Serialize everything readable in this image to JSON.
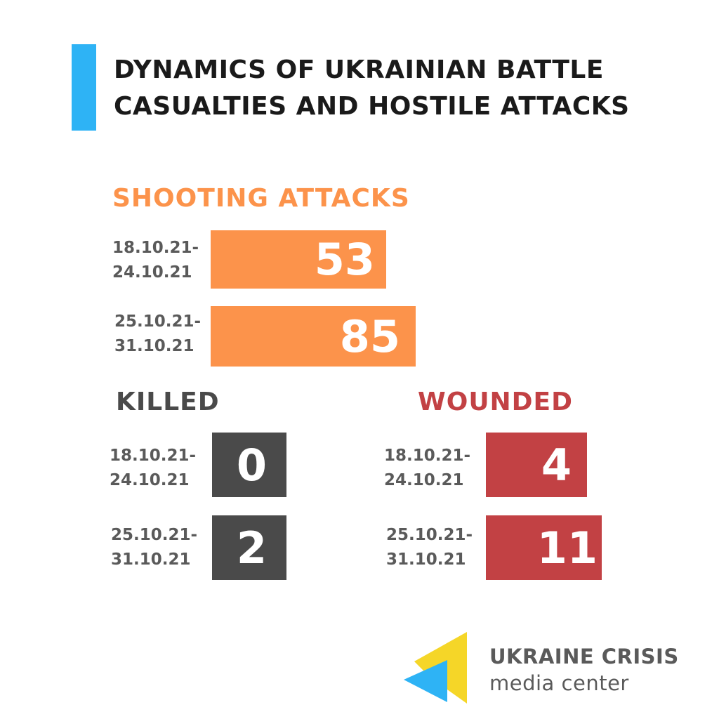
{
  "title_lines": [
    "DYNAMICS OF UKRAINIAN BATTLE",
    "CASUALTIES AND HOSTILE ATTACKS"
  ],
  "colors": {
    "accent": "#2eb3f5",
    "shooting": "#fc934b",
    "killed": "#4a4a4a",
    "wounded": "#c24144",
    "period_text": "#5a5a5a",
    "logo_yellow": "#f5d628",
    "logo_blue": "#2eb3f5"
  },
  "chart_data": [
    {
      "type": "bar",
      "title": "SHOOTING  ATTACKS",
      "categories": [
        "18.10.21-\n24.10.21",
        "25.10.21-\n31.10.21"
      ],
      "values": [
        53,
        85
      ]
    },
    {
      "type": "bar",
      "title": "KILLED",
      "categories": [
        "18.10.21-\n24.10.21",
        "25.10.21-\n31.10.21"
      ],
      "values": [
        0,
        2
      ]
    },
    {
      "type": "bar",
      "title": "WOUNDED",
      "categories": [
        "18.10.21-\n24.10.21",
        "25.10.21-\n31.10.21"
      ],
      "values": [
        4,
        11
      ]
    }
  ],
  "periods": {
    "p1_line1": "18.10.21-",
    "p1_line2": "24.10.21",
    "p2_line1": "25.10.21-",
    "p2_line2": "31.10.21"
  },
  "logo": {
    "name": "UKRAINE CRISIS",
    "sub": "media center",
    "icon": "ukraine-crisis-logo-icon"
  }
}
